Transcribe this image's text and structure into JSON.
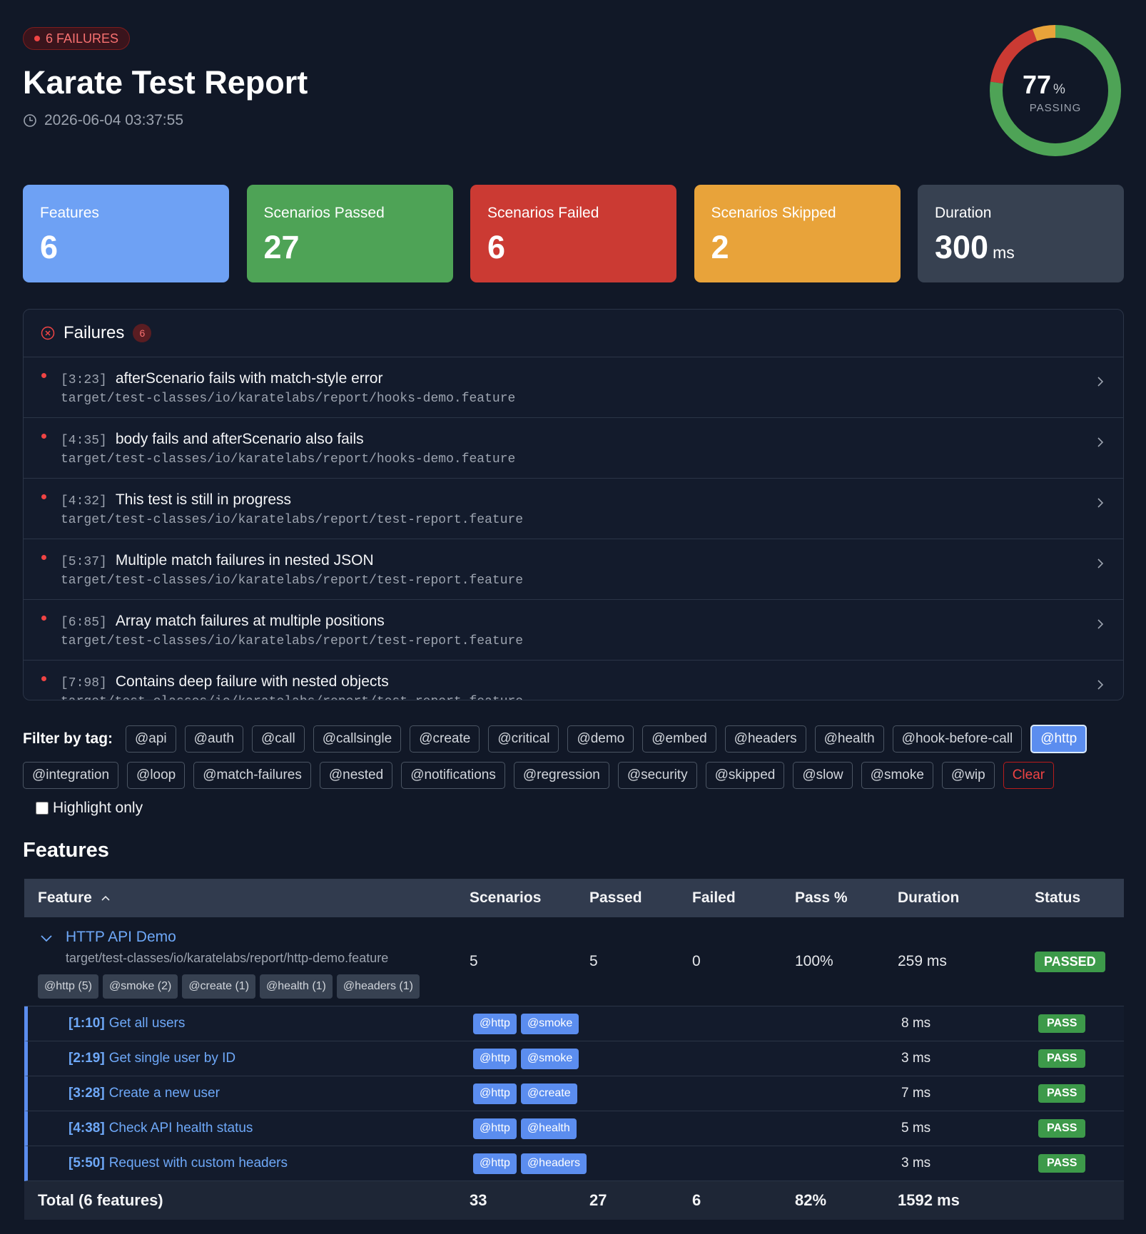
{
  "header": {
    "badge": "6 FAILURES",
    "title": "Karate Test Report",
    "timestamp": "2026-06-04 03:37:55"
  },
  "donut": {
    "value": "77",
    "unit": "%",
    "label": "PASSING"
  },
  "stats": [
    {
      "label": "Features",
      "value": 6
    },
    {
      "label": "Scenarios Passed",
      "value": 27
    },
    {
      "label": "Scenarios Failed",
      "value": 6
    },
    {
      "label": "Scenarios Skipped",
      "value": 2
    },
    {
      "label": "Duration",
      "value": 300,
      "unit": "ms"
    }
  ],
  "failures": {
    "title": "Failures",
    "count": "6",
    "items": [
      {
        "loc": "[3:23]",
        "name": "afterScenario fails with match-style error",
        "path": "target/test-classes/io/karatelabs/report/hooks-demo.feature"
      },
      {
        "loc": "[4:35]",
        "name": "body fails and afterScenario also fails",
        "path": "target/test-classes/io/karatelabs/report/hooks-demo.feature"
      },
      {
        "loc": "[4:32]",
        "name": "This test is still in progress",
        "path": "target/test-classes/io/karatelabs/report/test-report.feature"
      },
      {
        "loc": "[5:37]",
        "name": "Multiple match failures in nested JSON",
        "path": "target/test-classes/io/karatelabs/report/test-report.feature"
      },
      {
        "loc": "[6:85]",
        "name": "Array match failures at multiple positions",
        "path": "target/test-classes/io/karatelabs/report/test-report.feature"
      },
      {
        "loc": "[7:98]",
        "name": "Contains deep failure with nested objects",
        "path": "target/test-classes/io/karatelabs/report/test-report.feature"
      }
    ]
  },
  "filter": {
    "label": "Filter by tag:",
    "tags": [
      {
        "label": "@api"
      },
      {
        "label": "@auth"
      },
      {
        "label": "@call"
      },
      {
        "label": "@callsingle"
      },
      {
        "label": "@create"
      },
      {
        "label": "@critical"
      },
      {
        "label": "@demo"
      },
      {
        "label": "@embed"
      },
      {
        "label": "@headers"
      },
      {
        "label": "@health"
      },
      {
        "label": "@hook-before-call"
      },
      {
        "label": "@http",
        "selected": true
      },
      {
        "label": "@integration"
      },
      {
        "label": "@loop"
      },
      {
        "label": "@match-failures"
      },
      {
        "label": "@nested"
      },
      {
        "label": "@notifications"
      },
      {
        "label": "@regression"
      },
      {
        "label": "@security"
      },
      {
        "label": "@skipped"
      },
      {
        "label": "@slow"
      },
      {
        "label": "@smoke"
      },
      {
        "label": "@wip"
      }
    ],
    "clear": "Clear",
    "highlight": "Highlight only"
  },
  "features": {
    "title": "Features",
    "columns": [
      "Feature",
      "Scenarios",
      "Passed",
      "Failed",
      "Pass %",
      "Duration",
      "Status"
    ],
    "rows": [
      {
        "name": "HTTP API Demo",
        "path": "target/test-classes/io/karatelabs/report/http-demo.feature",
        "tags": [
          "@http (5)",
          "@smoke (2)",
          "@create (1)",
          "@health (1)",
          "@headers (1)"
        ],
        "scenarios": "5",
        "passed": "5",
        "failed": "0",
        "pass_pct": "100%",
        "duration": "259 ms",
        "status": "PASSED",
        "items": [
          {
            "loc": "[1:10]",
            "name": "Get all users",
            "tags": [
              "@http",
              "@smoke"
            ],
            "duration": "8 ms",
            "status": "PASS"
          },
          {
            "loc": "[2:19]",
            "name": "Get single user by ID",
            "tags": [
              "@http",
              "@smoke"
            ],
            "duration": "3 ms",
            "status": "PASS"
          },
          {
            "loc": "[3:28]",
            "name": "Create a new user",
            "tags": [
              "@http",
              "@create"
            ],
            "duration": "7 ms",
            "status": "PASS"
          },
          {
            "loc": "[4:38]",
            "name": "Check API health status",
            "tags": [
              "@http",
              "@health"
            ],
            "duration": "5 ms",
            "status": "PASS"
          },
          {
            "loc": "[5:50]",
            "name": "Request with custom headers",
            "tags": [
              "@http",
              "@headers"
            ],
            "duration": "3 ms",
            "status": "PASS"
          }
        ]
      }
    ],
    "total": {
      "label": "Total (6 features)",
      "scenarios": "33",
      "passed": "27",
      "failed": "6",
      "pass_pct": "82%",
      "duration": "1592 ms"
    }
  }
}
